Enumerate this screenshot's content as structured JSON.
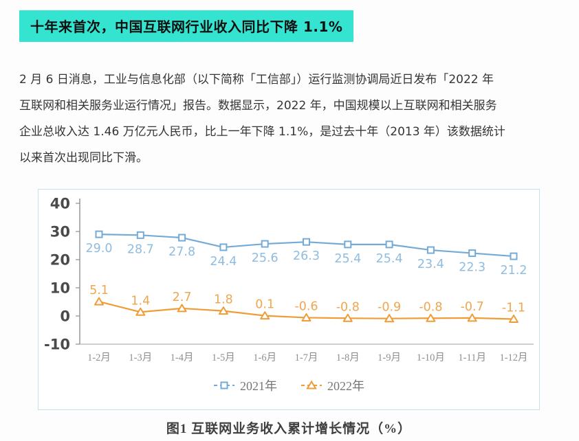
{
  "headline": {
    "text": "十年来首次，中国互联网行业收入同比下降 1.1%",
    "background_color": "#35e4d0"
  },
  "article": {
    "lines": [
      "2 月 6 日消息，工业与信息化部（以下简称「工信部」）运行监测协调局近日发布「2022 年",
      "互联网和相关服务业运行情况」报告。数据显示，2022 年，中国规模以上互联网和相关服务",
      "企业总收入达 1.46 万亿元人民币，比上一年下降 1.1%，是过去十年（2013 年）该数据统计",
      "以来首次出现同比下滑。"
    ]
  },
  "figure": {
    "caption": "图1  互联网业务收入累计增长情况（%）"
  },
  "chart_data": {
    "type": "line",
    "title": "图1 互联网业务收入累计增长情况（%）",
    "xlabel": "",
    "ylabel": "",
    "x": [
      "1-2月",
      "1-3月",
      "1-4月",
      "1-5月",
      "1-6月",
      "1-7月",
      "1-8月",
      "1-9月",
      "1-10月",
      "1-11月",
      "1-12月"
    ],
    "series": [
      {
        "name": "2021年",
        "marker": "square",
        "color": "#74aad6",
        "label_color": "#8fbcdf",
        "label_position": "below",
        "values": [
          29.0,
          28.7,
          27.8,
          24.4,
          25.6,
          26.3,
          25.4,
          25.4,
          23.4,
          22.3,
          21.2
        ]
      },
      {
        "name": "2022年",
        "marker": "triangle",
        "color": "#f09c36",
        "label_color": "#efa64f",
        "label_position": "above",
        "values": [
          5.1,
          1.4,
          2.7,
          1.8,
          0.1,
          -0.6,
          -0.8,
          -0.9,
          -0.8,
          -0.7,
          -1.1
        ]
      }
    ],
    "ylim": [
      -10,
      40
    ],
    "yticks": [
      40,
      30,
      20,
      10,
      0,
      -10
    ],
    "grid": false,
    "data_labels": true,
    "legend_position": "bottom-inside",
    "axis_color": "#8f8f8f",
    "ytick_color": "#4a4a4a",
    "xtick_color": "#8f8f8f"
  }
}
